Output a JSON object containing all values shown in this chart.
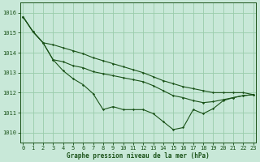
{
  "title": "Graphe pression niveau de la mer (hPa)",
  "background_color": "#c8e8d8",
  "grid_color": "#99ccaa",
  "line_color": "#1a5218",
  "x_ticks": [
    0,
    1,
    2,
    3,
    4,
    5,
    6,
    7,
    8,
    9,
    10,
    11,
    12,
    13,
    14,
    15,
    16,
    17,
    18,
    19,
    20,
    21,
    22,
    23
  ],
  "y_ticks": [
    1010,
    1011,
    1012,
    1013,
    1014,
    1015,
    1016
  ],
  "ylim": [
    1009.5,
    1016.5
  ],
  "xlim": [
    -0.3,
    23.3
  ],
  "series": [
    [
      1015.8,
      1015.05,
      1014.5,
      1013.65,
      1013.1,
      1012.7,
      1012.4,
      1011.95,
      1011.15,
      1011.3,
      1011.15,
      1011.15,
      1011.15,
      1010.95,
      1010.55,
      1010.15,
      1010.25,
      1011.15,
      1010.95,
      1011.2,
      1011.6,
      1011.75,
      1011.85,
      1011.9
    ],
    [
      1015.8,
      1015.05,
      1014.5,
      1013.65,
      1013.55,
      1013.35,
      1013.25,
      1013.05,
      1012.95,
      1012.85,
      1012.75,
      1012.65,
      1012.55,
      1012.35,
      1012.1,
      1011.85,
      1011.75,
      1011.6,
      1011.5,
      1011.55,
      1011.65,
      1011.75,
      1011.85,
      1011.9
    ],
    [
      1015.8,
      1015.05,
      1014.5,
      1014.4,
      1014.25,
      1014.1,
      1013.95,
      1013.75,
      1013.6,
      1013.45,
      1013.3,
      1013.15,
      1013.0,
      1012.8,
      1012.6,
      1012.45,
      1012.3,
      1012.2,
      1012.1,
      1012.0,
      1012.0,
      1012.0,
      1012.0,
      1011.9
    ]
  ]
}
